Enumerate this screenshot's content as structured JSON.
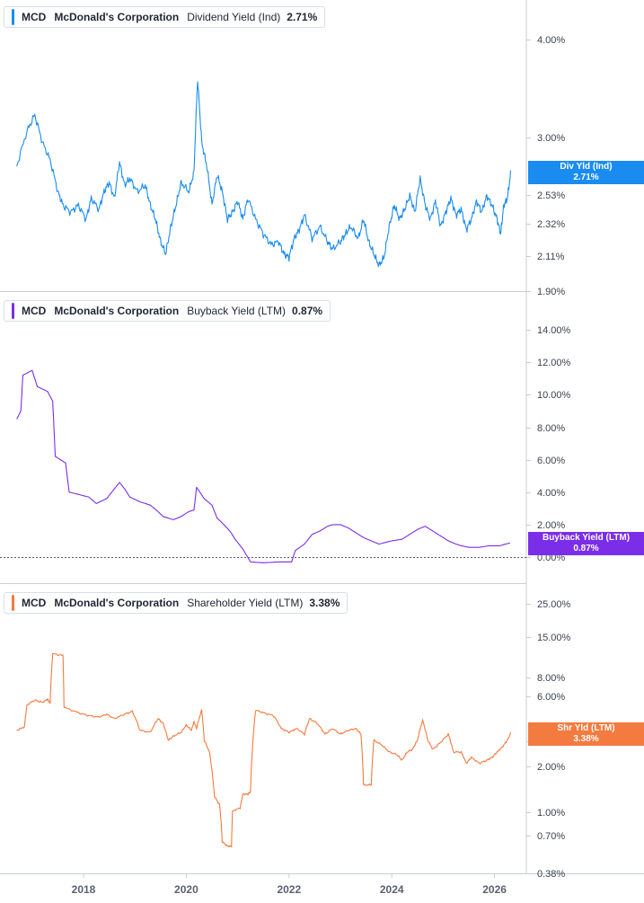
{
  "colors": {
    "dividend": "#1a8cf0",
    "buyback": "#7a2ee8",
    "shareholder": "#f47b3f"
  },
  "x_axis": {
    "ticks": [
      "2018",
      "2020",
      "2022",
      "2024",
      "2026"
    ]
  },
  "panels": [
    {
      "id": "dividend",
      "legend": {
        "ticker": "MCD",
        "company": "McDonald's Corporation",
        "metric": "Dividend Yield (Ind)",
        "value": "2.71%"
      },
      "tag": {
        "label": "Div Yld (Ind)",
        "value": "2.71%"
      },
      "scale": "log",
      "y_ticks": [
        "4.00%",
        "3.00%",
        "2.53%",
        "2.32%",
        "2.11%",
        "1.90%"
      ]
    },
    {
      "id": "buyback",
      "legend": {
        "ticker": "MCD",
        "company": "McDonald's Corporation",
        "metric": "Buyback Yield (LTM)",
        "value": "0.87%"
      },
      "tag": {
        "label": "Buyback Yield (LTM)",
        "value": "0.87%"
      },
      "scale": "linear",
      "y_ticks": [
        "14.00%",
        "12.00%",
        "10.00%",
        "8.00%",
        "6.00%",
        "4.00%",
        "2.00%",
        "0.00%"
      ]
    },
    {
      "id": "shareholder",
      "legend": {
        "ticker": "MCD",
        "company": "McDonald's Corporation",
        "metric": "Shareholder Yield (LTM)",
        "value": "3.38%"
      },
      "tag": {
        "label": "Shr Yld (LTM)",
        "value": "3.38%"
      },
      "scale": "log",
      "y_ticks": [
        "25.00%",
        "15.00%",
        "8.00%",
        "6.00%",
        "3.00%",
        "2.00%",
        "1.00%",
        "0.70%",
        "0.38%"
      ]
    }
  ],
  "chart_data": [
    {
      "type": "line",
      "name": "Dividend Yield (Ind)",
      "y_scale": "log",
      "ylim": [
        1.9,
        4.6
      ],
      "points": [
        [
          2016.7,
          2.75
        ],
        [
          2016.9,
          3.05
        ],
        [
          2017.05,
          3.2
        ],
        [
          2017.2,
          2.95
        ],
        [
          2017.35,
          2.8
        ],
        [
          2017.5,
          2.55
        ],
        [
          2017.6,
          2.45
        ],
        [
          2017.75,
          2.4
        ],
        [
          2017.9,
          2.45
        ],
        [
          2018.05,
          2.35
        ],
        [
          2018.15,
          2.5
        ],
        [
          2018.3,
          2.42
        ],
        [
          2018.4,
          2.55
        ],
        [
          2018.5,
          2.62
        ],
        [
          2018.6,
          2.5
        ],
        [
          2018.7,
          2.78
        ],
        [
          2018.8,
          2.6
        ],
        [
          2018.9,
          2.65
        ],
        [
          2019.05,
          2.55
        ],
        [
          2019.2,
          2.6
        ],
        [
          2019.3,
          2.45
        ],
        [
          2019.4,
          2.35
        ],
        [
          2019.5,
          2.2
        ],
        [
          2019.6,
          2.12
        ],
        [
          2019.7,
          2.3
        ],
        [
          2019.8,
          2.45
        ],
        [
          2019.9,
          2.62
        ],
        [
          2020.05,
          2.55
        ],
        [
          2020.15,
          2.7
        ],
        [
          2020.22,
          3.55
        ],
        [
          2020.3,
          2.95
        ],
        [
          2020.4,
          2.75
        ],
        [
          2020.5,
          2.45
        ],
        [
          2020.6,
          2.68
        ],
        [
          2020.7,
          2.55
        ],
        [
          2020.8,
          2.35
        ],
        [
          2020.9,
          2.4
        ],
        [
          2021.0,
          2.48
        ],
        [
          2021.1,
          2.35
        ],
        [
          2021.2,
          2.5
        ],
        [
          2021.35,
          2.35
        ],
        [
          2021.5,
          2.25
        ],
        [
          2021.65,
          2.18
        ],
        [
          2021.8,
          2.2
        ],
        [
          2021.9,
          2.12
        ],
        [
          2022.0,
          2.1
        ],
        [
          2022.1,
          2.22
        ],
        [
          2022.2,
          2.28
        ],
        [
          2022.3,
          2.38
        ],
        [
          2022.45,
          2.22
        ],
        [
          2022.6,
          2.3
        ],
        [
          2022.75,
          2.2
        ],
        [
          2022.85,
          2.15
        ],
        [
          2023.0,
          2.2
        ],
        [
          2023.1,
          2.25
        ],
        [
          2023.2,
          2.3
        ],
        [
          2023.35,
          2.22
        ],
        [
          2023.45,
          2.35
        ],
        [
          2023.55,
          2.2
        ],
        [
          2023.65,
          2.12
        ],
        [
          2023.75,
          2.05
        ],
        [
          2023.85,
          2.1
        ],
        [
          2023.95,
          2.3
        ],
        [
          2024.05,
          2.45
        ],
        [
          2024.15,
          2.35
        ],
        [
          2024.25,
          2.42
        ],
        [
          2024.35,
          2.52
        ],
        [
          2024.45,
          2.4
        ],
        [
          2024.55,
          2.65
        ],
        [
          2024.65,
          2.45
        ],
        [
          2024.75,
          2.35
        ],
        [
          2024.85,
          2.48
        ],
        [
          2024.95,
          2.3
        ],
        [
          2025.05,
          2.4
        ],
        [
          2025.15,
          2.5
        ],
        [
          2025.25,
          2.38
        ],
        [
          2025.35,
          2.42
        ],
        [
          2025.45,
          2.28
        ],
        [
          2025.55,
          2.35
        ],
        [
          2025.65,
          2.48
        ],
        [
          2025.75,
          2.4
        ],
        [
          2025.85,
          2.52
        ],
        [
          2025.95,
          2.45
        ],
        [
          2026.05,
          2.35
        ],
        [
          2026.12,
          2.25
        ],
        [
          2026.18,
          2.45
        ],
        [
          2026.25,
          2.5
        ],
        [
          2026.32,
          2.71
        ]
      ]
    },
    {
      "type": "line",
      "name": "Buyback Yield (LTM)",
      "y_scale": "linear",
      "ylim": [
        -0.5,
        14.5
      ],
      "points": [
        [
          2016.7,
          8.5
        ],
        [
          2016.78,
          9.0
        ],
        [
          2016.82,
          11.2
        ],
        [
          2017.0,
          11.5
        ],
        [
          2017.1,
          10.5
        ],
        [
          2017.3,
          10.2
        ],
        [
          2017.4,
          9.6
        ],
        [
          2017.45,
          6.2
        ],
        [
          2017.65,
          5.8
        ],
        [
          2017.72,
          4.0
        ],
        [
          2018.1,
          3.7
        ],
        [
          2018.25,
          3.3
        ],
        [
          2018.45,
          3.6
        ],
        [
          2018.55,
          4.0
        ],
        [
          2018.7,
          4.6
        ],
        [
          2018.8,
          4.2
        ],
        [
          2018.9,
          3.7
        ],
        [
          2019.1,
          3.4
        ],
        [
          2019.3,
          3.2
        ],
        [
          2019.45,
          2.8
        ],
        [
          2019.55,
          2.5
        ],
        [
          2019.75,
          2.3
        ],
        [
          2019.9,
          2.5
        ],
        [
          2020.05,
          2.8
        ],
        [
          2020.15,
          2.9
        ],
        [
          2020.2,
          4.3
        ],
        [
          2020.35,
          3.6
        ],
        [
          2020.5,
          3.2
        ],
        [
          2020.6,
          2.4
        ],
        [
          2020.7,
          2.1
        ],
        [
          2020.85,
          1.6
        ],
        [
          2020.95,
          1.1
        ],
        [
          2021.1,
          0.5
        ],
        [
          2021.25,
          -0.3
        ],
        [
          2021.5,
          -0.35
        ],
        [
          2021.8,
          -0.3
        ],
        [
          2022.05,
          -0.3
        ],
        [
          2022.12,
          0.4
        ],
        [
          2022.3,
          0.8
        ],
        [
          2022.45,
          1.4
        ],
        [
          2022.6,
          1.6
        ],
        [
          2022.75,
          1.9
        ],
        [
          2022.85,
          2.0
        ],
        [
          2023.0,
          2.0
        ],
        [
          2023.15,
          1.8
        ],
        [
          2023.3,
          1.5
        ],
        [
          2023.45,
          1.2
        ],
        [
          2023.6,
          1.0
        ],
        [
          2023.75,
          0.8
        ],
        [
          2024.0,
          1.0
        ],
        [
          2024.2,
          1.1
        ],
        [
          2024.35,
          1.4
        ],
        [
          2024.5,
          1.7
        ],
        [
          2024.65,
          1.9
        ],
        [
          2024.8,
          1.6
        ],
        [
          2024.95,
          1.3
        ],
        [
          2025.1,
          1.0
        ],
        [
          2025.25,
          0.8
        ],
        [
          2025.35,
          0.7
        ],
        [
          2025.5,
          0.6
        ],
        [
          2025.7,
          0.6
        ],
        [
          2025.9,
          0.7
        ],
        [
          2026.1,
          0.7
        ],
        [
          2026.3,
          0.87
        ]
      ]
    },
    {
      "type": "line",
      "name": "Shareholder Yield (LTM)",
      "y_scale": "log",
      "ylim": [
        0.38,
        30
      ],
      "points": [
        [
          2016.7,
          3.5
        ],
        [
          2016.85,
          3.7
        ],
        [
          2016.9,
          5.2
        ],
        [
          2017.05,
          5.6
        ],
        [
          2017.2,
          5.4
        ],
        [
          2017.3,
          5.7
        ],
        [
          2017.35,
          5.3
        ],
        [
          2017.4,
          11.5
        ],
        [
          2017.6,
          11.2
        ],
        [
          2017.62,
          5.0
        ],
        [
          2017.9,
          4.6
        ],
        [
          2018.1,
          4.4
        ],
        [
          2018.3,
          4.3
        ],
        [
          2018.45,
          4.5
        ],
        [
          2018.6,
          4.2
        ],
        [
          2018.8,
          4.5
        ],
        [
          2018.95,
          4.7
        ],
        [
          2019.1,
          3.5
        ],
        [
          2019.3,
          3.4
        ],
        [
          2019.45,
          4.2
        ],
        [
          2019.55,
          3.9
        ],
        [
          2019.65,
          3.0
        ],
        [
          2019.75,
          3.2
        ],
        [
          2019.9,
          3.4
        ],
        [
          2020.0,
          3.8
        ],
        [
          2020.1,
          3.5
        ],
        [
          2020.15,
          4.0
        ],
        [
          2020.2,
          3.6
        ],
        [
          2020.3,
          4.8
        ],
        [
          2020.35,
          3.0
        ],
        [
          2020.45,
          2.5
        ],
        [
          2020.55,
          1.25
        ],
        [
          2020.65,
          1.1
        ],
        [
          2020.7,
          0.62
        ],
        [
          2020.8,
          0.58
        ],
        [
          2020.88,
          0.58
        ],
        [
          2020.9,
          1.0
        ],
        [
          2021.05,
          1.05
        ],
        [
          2021.1,
          1.3
        ],
        [
          2021.2,
          1.3
        ],
        [
          2021.25,
          1.35
        ],
        [
          2021.35,
          4.8
        ],
        [
          2021.5,
          4.6
        ],
        [
          2021.7,
          4.4
        ],
        [
          2021.85,
          3.6
        ],
        [
          2022.0,
          3.4
        ],
        [
          2022.15,
          3.6
        ],
        [
          2022.3,
          3.3
        ],
        [
          2022.4,
          4.2
        ],
        [
          2022.55,
          3.9
        ],
        [
          2022.7,
          3.3
        ],
        [
          2022.85,
          3.6
        ],
        [
          2023.0,
          3.3
        ],
        [
          2023.15,
          3.5
        ],
        [
          2023.3,
          3.6
        ],
        [
          2023.4,
          3.3
        ],
        [
          2023.45,
          1.5
        ],
        [
          2023.6,
          1.5
        ],
        [
          2023.65,
          3.0
        ],
        [
          2023.8,
          2.8
        ],
        [
          2023.95,
          2.5
        ],
        [
          2024.1,
          2.4
        ],
        [
          2024.2,
          2.2
        ],
        [
          2024.3,
          2.5
        ],
        [
          2024.4,
          2.6
        ],
        [
          2024.5,
          3.0
        ],
        [
          2024.6,
          4.1
        ],
        [
          2024.7,
          3.0
        ],
        [
          2024.8,
          2.6
        ],
        [
          2024.95,
          2.9
        ],
        [
          2025.1,
          3.3
        ],
        [
          2025.2,
          2.5
        ],
        [
          2025.35,
          2.5
        ],
        [
          2025.45,
          2.1
        ],
        [
          2025.55,
          2.3
        ],
        [
          2025.7,
          2.1
        ],
        [
          2025.85,
          2.2
        ],
        [
          2025.95,
          2.3
        ],
        [
          2026.05,
          2.5
        ],
        [
          2026.15,
          2.7
        ],
        [
          2026.25,
          3.0
        ],
        [
          2026.32,
          3.38
        ]
      ]
    }
  ]
}
